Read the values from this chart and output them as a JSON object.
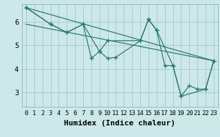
{
  "xlabel": "Humidex (Indice chaleur)",
  "background_color": "#cce8e8",
  "grid_color": "#aacccc",
  "line_color": "#2a7a6a",
  "xlim": [
    -0.5,
    23.5
  ],
  "ylim": [
    2.4,
    6.75
  ],
  "yticks": [
    3,
    4,
    5,
    6
  ],
  "xticks": [
    0,
    1,
    2,
    3,
    4,
    5,
    6,
    7,
    8,
    9,
    10,
    11,
    12,
    13,
    14,
    15,
    16,
    17,
    18,
    19,
    20,
    21,
    22,
    23
  ],
  "series_zigzag1_x": [
    0,
    3,
    5,
    7,
    8,
    9,
    10,
    11,
    14,
    15,
    16,
    17,
    18,
    19,
    20,
    21,
    22,
    23
  ],
  "series_zigzag1_y": [
    6.6,
    5.9,
    5.55,
    5.9,
    4.45,
    4.75,
    4.45,
    4.5,
    5.2,
    6.1,
    5.65,
    4.15,
    4.15,
    2.85,
    3.3,
    3.15,
    3.15,
    4.35
  ],
  "series_zigzag2_x": [
    0,
    3,
    5,
    7,
    9,
    10,
    14,
    15,
    16,
    18,
    19,
    22,
    23
  ],
  "series_zigzag2_y": [
    6.6,
    5.9,
    5.55,
    5.9,
    4.75,
    5.2,
    5.2,
    6.1,
    5.65,
    4.15,
    2.85,
    3.15,
    4.35
  ],
  "series_line1_x": [
    0,
    23
  ],
  "series_line1_y": [
    6.6,
    4.35
  ],
  "series_line2_x": [
    0,
    23
  ],
  "series_line2_y": [
    5.9,
    4.35
  ],
  "xlabel_fontsize": 8,
  "tick_fontsize": 6.5
}
